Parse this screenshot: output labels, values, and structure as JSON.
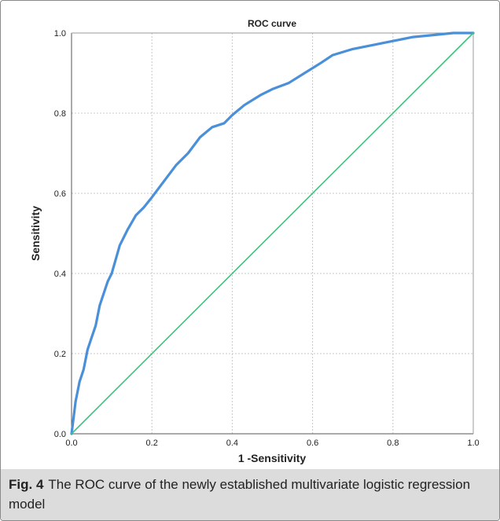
{
  "chart_data": {
    "type": "line",
    "title": "ROC curve",
    "xlabel": "1 -Sensitivity",
    "ylabel": "Sensitivity",
    "xlim": [
      0.0,
      1.0
    ],
    "ylim": [
      0.0,
      1.0
    ],
    "xticks": [
      "0.0",
      "0.2",
      "0.4",
      "0.6",
      "0.8",
      "1.0"
    ],
    "yticks": [
      "0.0",
      "0.2",
      "0.4",
      "0.6",
      "0.8",
      "1.0"
    ],
    "grid": true,
    "series": [
      {
        "color": "#4a90d9",
        "x": [
          0.0,
          0.005,
          0.01,
          0.02,
          0.03,
          0.04,
          0.05,
          0.06,
          0.07,
          0.08,
          0.09,
          0.1,
          0.12,
          0.14,
          0.16,
          0.18,
          0.2,
          0.23,
          0.26,
          0.29,
          0.32,
          0.35,
          0.38,
          0.4,
          0.43,
          0.47,
          0.5,
          0.54,
          0.58,
          0.62,
          0.65,
          0.7,
          0.75,
          0.8,
          0.85,
          0.9,
          0.95,
          1.0
        ],
        "y": [
          0.0,
          0.04,
          0.08,
          0.13,
          0.16,
          0.21,
          0.24,
          0.27,
          0.32,
          0.35,
          0.38,
          0.4,
          0.47,
          0.51,
          0.545,
          0.565,
          0.59,
          0.63,
          0.67,
          0.7,
          0.74,
          0.765,
          0.775,
          0.795,
          0.82,
          0.845,
          0.86,
          0.875,
          0.9,
          0.925,
          0.945,
          0.96,
          0.97,
          0.98,
          0.99,
          0.995,
          1.0,
          1.0
        ]
      },
      {
        "color": "#3cc47c",
        "x": [
          0.0,
          1.0
        ],
        "y": [
          0.0,
          1.0
        ]
      }
    ]
  },
  "caption": {
    "fig_label": "Fig. 4",
    "text": "The ROC curve of the newly established multivariate logistic regression model"
  }
}
